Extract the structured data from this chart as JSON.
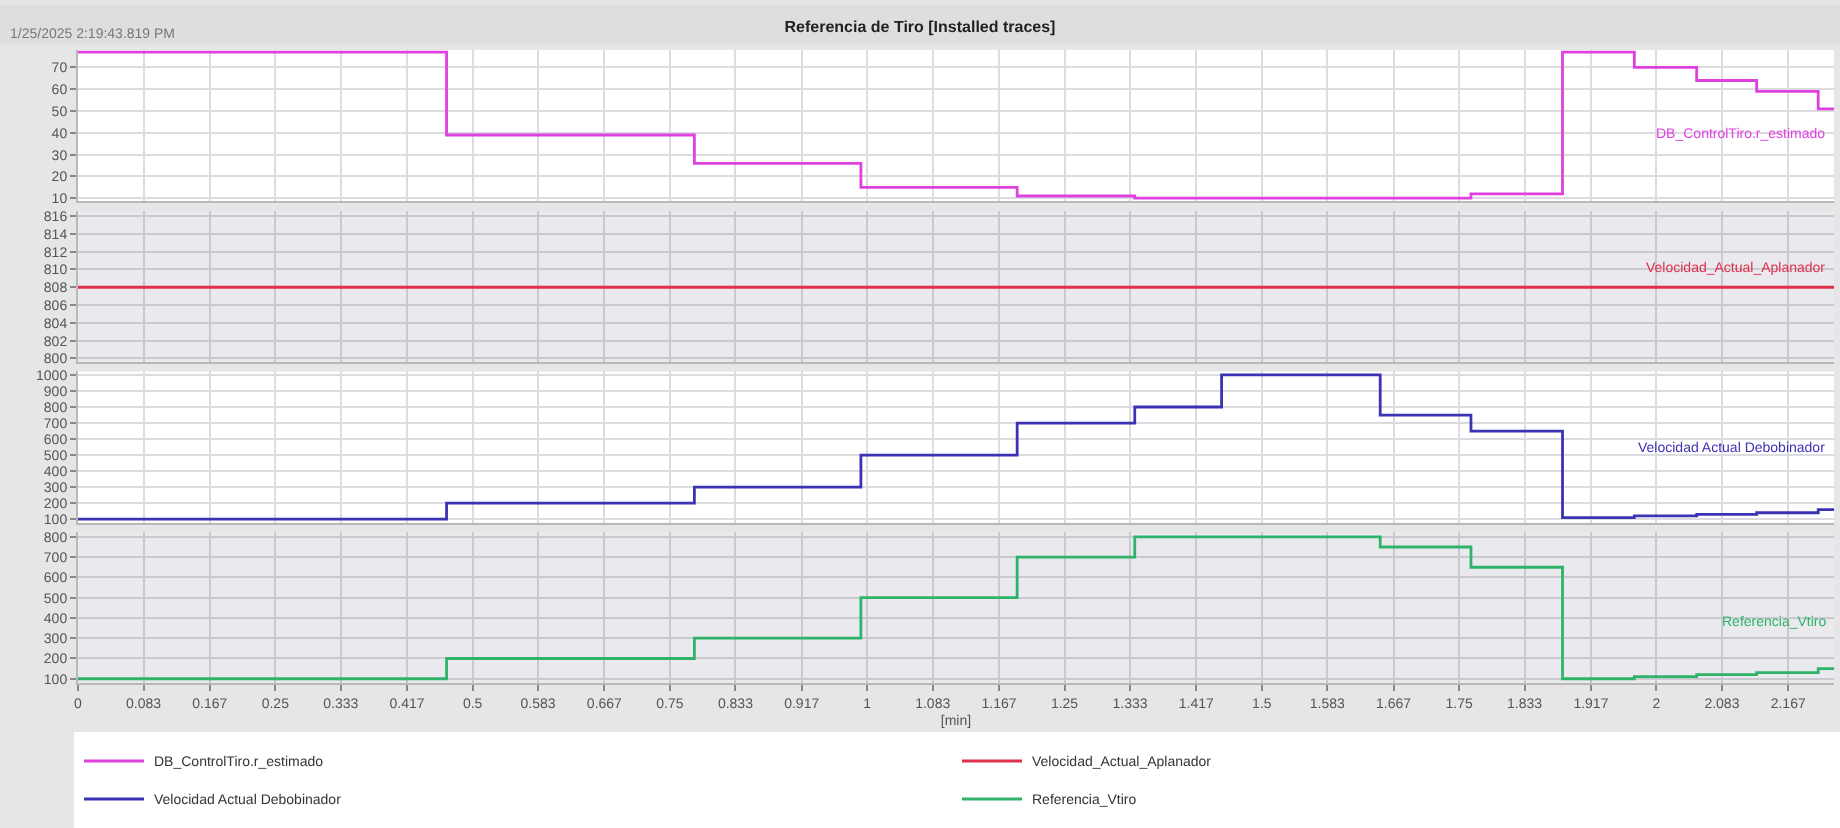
{
  "chart_data": [
    {
      "type": "step",
      "title": "Referencia de Tiro [Installed traces]",
      "subtitle": "1/25/2025 2:19:43.819 PM",
      "xlim": [
        0,
        2.225
      ],
      "xticks": [
        0,
        0.083,
        0.167,
        0.25,
        0.333,
        0.417,
        0.5,
        0.583,
        0.667,
        0.75,
        0.833,
        0.917,
        1,
        1.083,
        1.167,
        1.25,
        1.333,
        1.417,
        1.5,
        1.583,
        1.667,
        1.75,
        1.833,
        1.917,
        2,
        2.083,
        2.167
      ],
      "ylim": [
        8.6,
        78
      ],
      "yticks": [
        10,
        20,
        30,
        40,
        50,
        60,
        70
      ],
      "tick_labels": "y",
      "grid": true,
      "legend": "bottom",
      "series": [
        {
          "name": "DB_ControlTiro.r_estimado",
          "color": "#e040e0",
          "x": [
            0,
            0.467,
            0.781,
            0.992,
            1.19,
            1.339,
            1.65,
            1.765,
            1.881,
            1.972,
            2.051,
            2.127,
            2.205,
            2.225
          ],
          "values": [
            77,
            39,
            26,
            15,
            11,
            10,
            10,
            12,
            77,
            70,
            64,
            59,
            51,
            51
          ]
        }
      ]
    },
    {
      "type": "step",
      "xlim": [
        0,
        2.225
      ],
      "xticks": [
        0,
        0.083,
        0.167,
        0.25,
        0.333,
        0.417,
        0.5,
        0.583,
        0.667,
        0.75,
        0.833,
        0.917,
        1,
        1.083,
        1.167,
        1.25,
        1.333,
        1.417,
        1.5,
        1.583,
        1.667,
        1.75,
        1.833,
        1.917,
        2,
        2.083,
        2.167
      ],
      "ylim": [
        799.6,
        816.6
      ],
      "yticks": [
        800,
        802,
        804,
        806,
        808,
        810,
        812,
        814,
        816
      ],
      "tick_labels": "y",
      "grid": true,
      "legend": "bottom",
      "series": [
        {
          "name": "Velocidad_Actual_Aplanador",
          "color": "#e0304a",
          "x": [
            0,
            2.225
          ],
          "values": [
            808,
            808
          ]
        }
      ]
    },
    {
      "type": "step",
      "xlim": [
        0,
        2.225
      ],
      "xticks": [
        0,
        0.083,
        0.167,
        0.25,
        0.333,
        0.417,
        0.5,
        0.583,
        0.667,
        0.75,
        0.833,
        0.917,
        1,
        1.083,
        1.167,
        1.25,
        1.333,
        1.417,
        1.5,
        1.583,
        1.667,
        1.75,
        1.833,
        1.917,
        2,
        2.083,
        2.167
      ],
      "ylim": [
        78,
        1022
      ],
      "yticks": [
        100,
        200,
        300,
        400,
        500,
        600,
        700,
        800,
        900,
        1000
      ],
      "tick_labels": "y",
      "grid": true,
      "legend": "bottom",
      "series": [
        {
          "name": "Velocidad Actual Debobinador",
          "color": "#3c32b4",
          "x": [
            0,
            0.467,
            0.781,
            0.992,
            1.19,
            1.339,
            1.449,
            1.65,
            1.765,
            1.881,
            1.972,
            2.051,
            2.127,
            2.205,
            2.225
          ],
          "values": [
            100,
            200,
            300,
            500,
            700,
            800,
            1000,
            750,
            650,
            110,
            120,
            130,
            140,
            160,
            160
          ]
        }
      ]
    },
    {
      "type": "step",
      "xlabel": "[min]",
      "xlim": [
        0,
        2.225
      ],
      "xticks": [
        0,
        0.083,
        0.167,
        0.25,
        0.333,
        0.417,
        0.5,
        0.583,
        0.667,
        0.75,
        0.833,
        0.917,
        1,
        1.083,
        1.167,
        1.25,
        1.333,
        1.417,
        1.5,
        1.583,
        1.667,
        1.75,
        1.833,
        1.917,
        2,
        2.083,
        2.167
      ],
      "ylim": [
        77,
        823
      ],
      "yticks": [
        100,
        200,
        300,
        400,
        500,
        600,
        700,
        800
      ],
      "grid": true,
      "legend": "bottom",
      "series": [
        {
          "name": "Referencia_Vtiro",
          "color": "#2fb36a",
          "x": [
            0,
            0.467,
            0.781,
            0.992,
            1.19,
            1.339,
            1.65,
            1.765,
            1.881,
            1.972,
            2.051,
            2.127,
            2.205,
            2.225
          ],
          "values": [
            100,
            200,
            300,
            500,
            700,
            800,
            750,
            650,
            100,
            110,
            120,
            130,
            150,
            150
          ]
        }
      ]
    }
  ]
}
